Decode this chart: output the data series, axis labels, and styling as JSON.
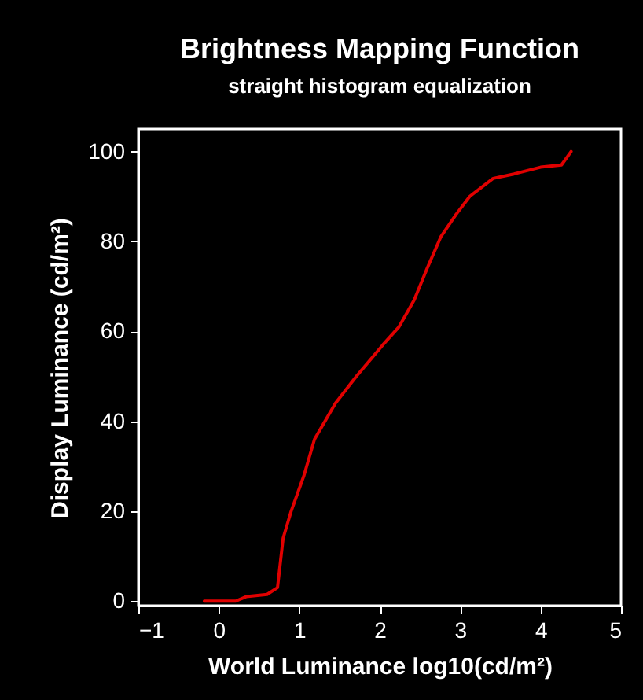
{
  "chart_data": {
    "type": "line",
    "title": "Brightness Mapping Function",
    "subtitle": "straight histogram equalization",
    "xlabel": "World Luminance log10(cd/m²)",
    "ylabel": "Display Luminance (cd/m²)",
    "x": [
      -0.18,
      0.21,
      0.34,
      0.6,
      0.73,
      0.8,
      0.9,
      1.06,
      1.19,
      1.45,
      1.71,
      2.04,
      2.24,
      2.43,
      2.59,
      2.76,
      2.95,
      3.12,
      3.41,
      3.67,
      4.0,
      4.26,
      4.38
    ],
    "series": [
      {
        "color": "#e00000",
        "values": [
          0,
          0,
          1,
          1.5,
          3,
          14,
          20,
          28,
          36,
          44,
          50,
          57,
          61,
          67,
          74,
          81,
          86,
          90,
          94,
          95,
          96.5,
          97,
          100
        ]
      }
    ],
    "xlim": [
      -1,
      5
    ],
    "ylim": [
      -1,
      105
    ],
    "xticks": [
      -1,
      0,
      1,
      2,
      3,
      4,
      5
    ],
    "yticks": [
      0,
      20,
      40,
      60,
      80,
      100
    ],
    "grid": false,
    "marker": "none",
    "line_style": "solid"
  }
}
